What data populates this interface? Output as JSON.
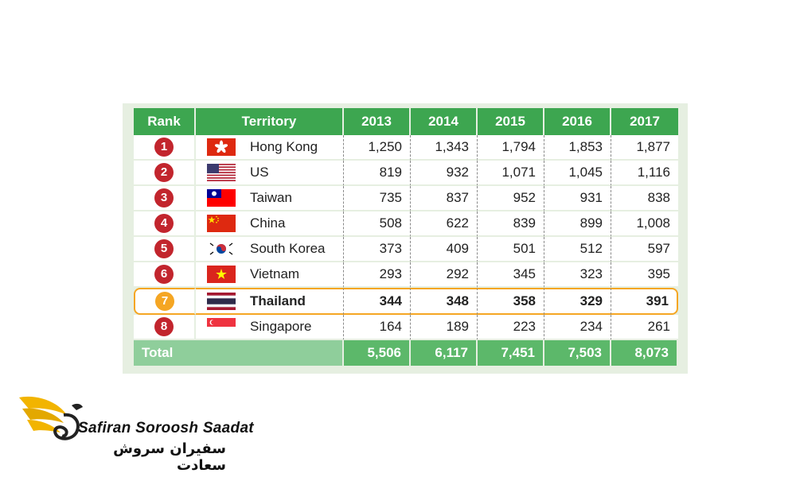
{
  "chart_data": {
    "type": "table",
    "columns": [
      "Rank",
      "Territory",
      "2013",
      "2014",
      "2015",
      "2016",
      "2017"
    ],
    "rows": [
      {
        "rank": "1",
        "territory": "Hong Kong",
        "flag": "hk-flag-icon",
        "values": [
          "1,250",
          "1,343",
          "1,794",
          "1,853",
          "1,877"
        ]
      },
      {
        "rank": "2",
        "territory": "US",
        "flag": "us-flag-icon",
        "values": [
          "819",
          "932",
          "1,071",
          "1,045",
          "1,116"
        ]
      },
      {
        "rank": "3",
        "territory": "Taiwan",
        "flag": "taiwan-flag-icon",
        "values": [
          "735",
          "837",
          "952",
          "931",
          "838"
        ]
      },
      {
        "rank": "4",
        "territory": "China",
        "flag": "china-flag-icon",
        "values": [
          "508",
          "622",
          "839",
          "899",
          "1,008"
        ]
      },
      {
        "rank": "5",
        "territory": "South Korea",
        "flag": "south-korea-flag-icon",
        "values": [
          "373",
          "409",
          "501",
          "512",
          "597"
        ]
      },
      {
        "rank": "6",
        "territory": "Vietnam",
        "flag": "vietnam-flag-icon",
        "values": [
          "293",
          "292",
          "345",
          "323",
          "395"
        ]
      },
      {
        "rank": "7",
        "territory": "Thailand",
        "flag": "thailand-flag-icon",
        "values": [
          "344",
          "348",
          "358",
          "329",
          "391"
        ],
        "highlighted": true
      },
      {
        "rank": "8",
        "territory": "Singapore",
        "flag": "singapore-flag-icon",
        "values": [
          "164",
          "189",
          "223",
          "234",
          "261"
        ]
      }
    ],
    "total": {
      "label": "Total",
      "values": [
        "5,506",
        "6,117",
        "7,451",
        "7,503",
        "8,073"
      ]
    }
  },
  "colors": {
    "header_green": "#3da650",
    "total_green": "#8fce9b",
    "badge_red": "#c2252d",
    "highlight_orange": "#f5a623"
  },
  "brand": {
    "name_en": "Safiran Soroosh Saadat",
    "name_fa": "سفیران سروش سعادت",
    "logo": "bird-wing-logo"
  }
}
